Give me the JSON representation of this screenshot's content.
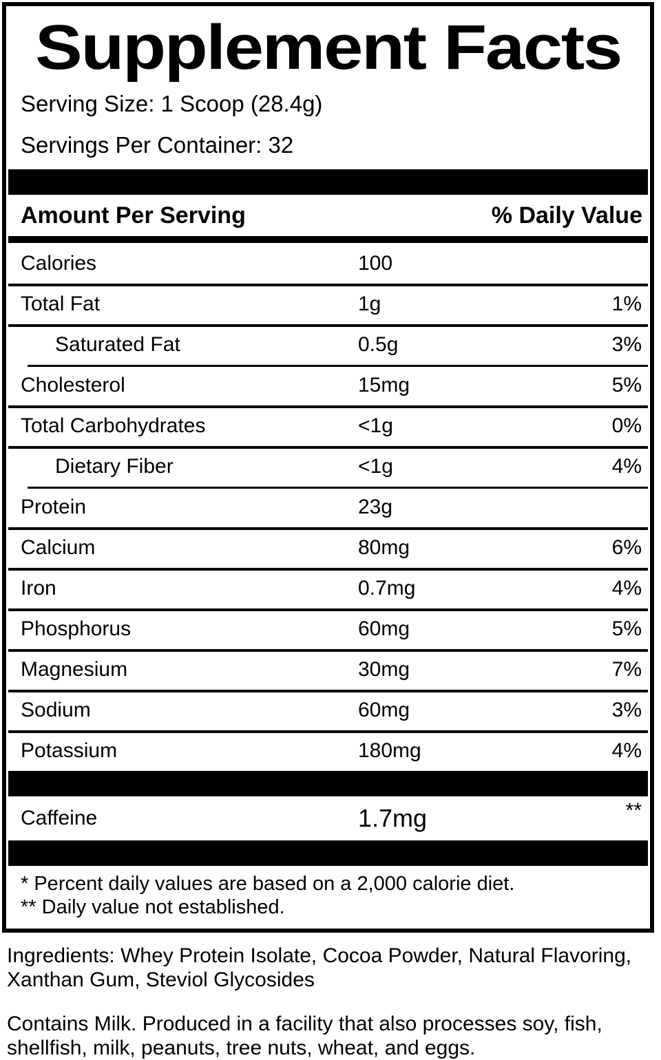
{
  "title": "Supplement Facts",
  "serving_info": {
    "serving_size": "Serving Size: 1 Scoop (28.4g)",
    "servings_per_container": "Servings Per Container: 32"
  },
  "table": {
    "amount_header": "Amount Per Serving",
    "daily_value_header": "% Daily Value",
    "rows": [
      {
        "name": "Calories",
        "amount": "100",
        "dv": "",
        "indent": false,
        "top": "none"
      },
      {
        "name": "Total Fat",
        "amount": "1g",
        "dv": "1%",
        "indent": false,
        "top": "full"
      },
      {
        "name": "Saturated Fat",
        "amount": "0.5g",
        "dv": "3%",
        "indent": true,
        "top": "full"
      },
      {
        "name": "Cholesterol",
        "amount": "15mg",
        "dv": "5%",
        "indent": false,
        "top": "indent"
      },
      {
        "name": "Total Carbohydrates",
        "amount": "<1g",
        "dv": "0%",
        "indent": false,
        "top": "full"
      },
      {
        "name": "Dietary Fiber",
        "amount": "<1g",
        "dv": "4%",
        "indent": true,
        "top": "full"
      },
      {
        "name": "Protein",
        "amount": "23g",
        "dv": "",
        "indent": false,
        "top": "indent"
      },
      {
        "name": "Calcium",
        "amount": "80mg",
        "dv": "6%",
        "indent": false,
        "top": "full"
      },
      {
        "name": "Iron",
        "amount": "0.7mg",
        "dv": "4%",
        "indent": false,
        "top": "full"
      },
      {
        "name": "Phosphorus",
        "amount": "60mg",
        "dv": "5%",
        "indent": false,
        "top": "full"
      },
      {
        "name": "Magnesium",
        "amount": "30mg",
        "dv": "7%",
        "indent": false,
        "top": "full"
      },
      {
        "name": "Sodium",
        "amount": "60mg",
        "dv": "3%",
        "indent": false,
        "top": "full"
      },
      {
        "name": "Potassium",
        "amount": "180mg",
        "dv": "4%",
        "indent": false,
        "top": "full"
      }
    ],
    "caffeine_row": {
      "name": "Caffeine",
      "amount": "1.7mg",
      "dv": "**"
    },
    "footnotes": [
      "* Percent daily values are based on a 2,000 calorie diet.",
      "** Daily value not established."
    ]
  },
  "ingredients_text": "Ingredients: Whey Protein Isolate, Cocoa Powder, Natural Flavoring, Xanthan Gum, Steviol Glycosides",
  "allergen_text": "Contains Milk. Produced in a facility that also processes soy, fish, shellfish, milk, peanuts, tree nuts, wheat, and eggs.",
  "colors": {
    "ink": "#000000",
    "background": "#ffffff"
  }
}
